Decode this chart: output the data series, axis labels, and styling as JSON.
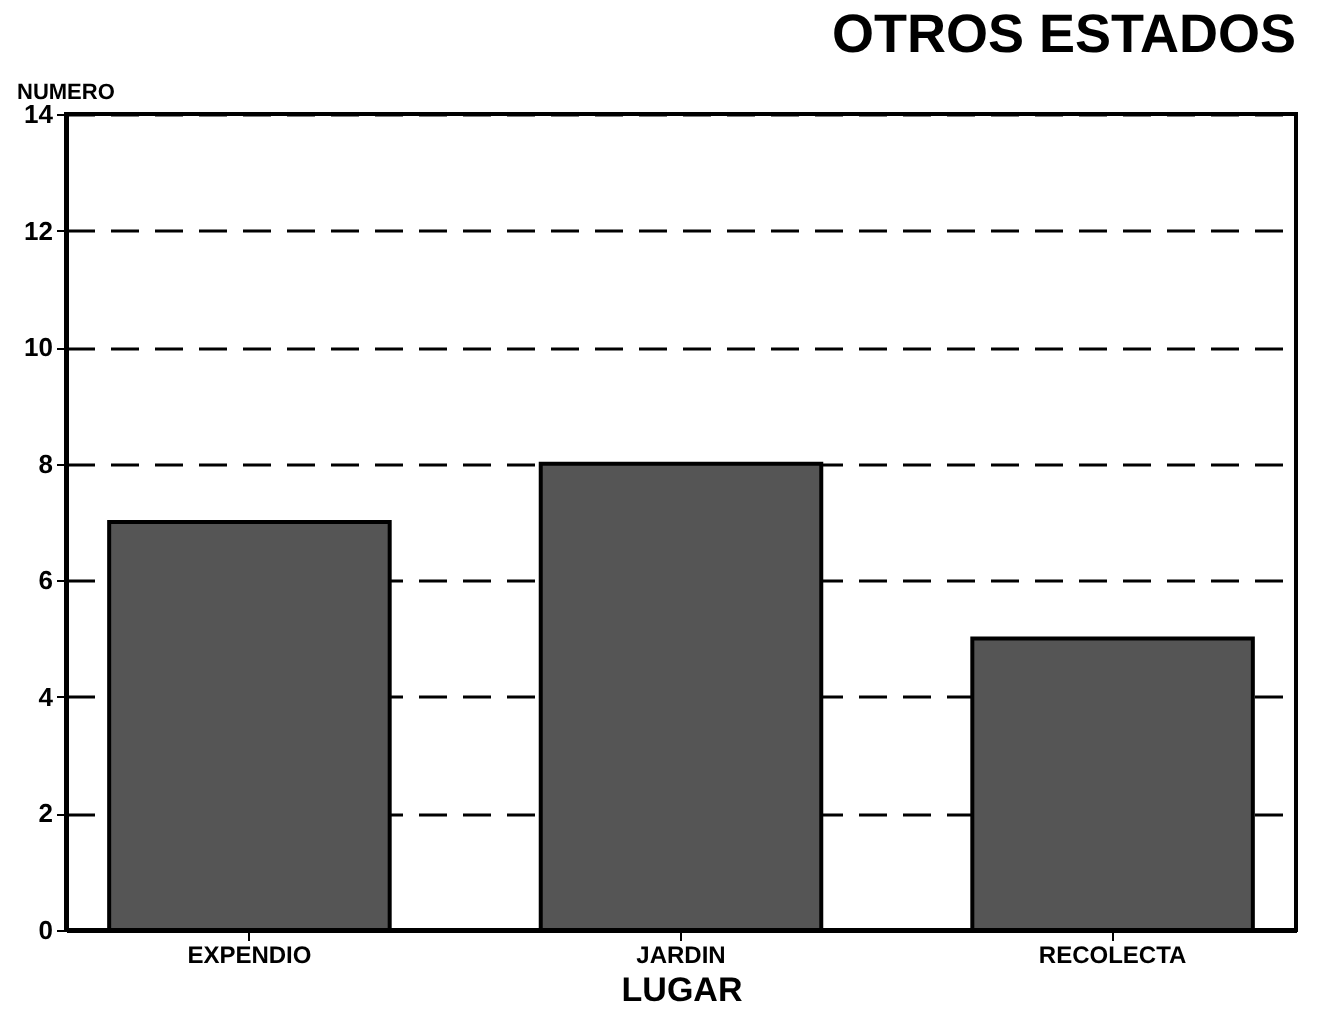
{
  "chart_data": {
    "type": "bar",
    "title": "OTROS ESTADOS",
    "xlabel": "LUGAR",
    "ylabel": "NUMERO",
    "categories": [
      "EXPENDIO",
      "JARDIN",
      "RECOLECTA"
    ],
    "values": [
      7,
      8,
      5
    ],
    "color": "#555555",
    "ylim": [
      0,
      14
    ],
    "yticks": [
      0,
      2,
      4,
      6,
      8,
      10,
      12,
      14
    ],
    "grid": "y"
  }
}
